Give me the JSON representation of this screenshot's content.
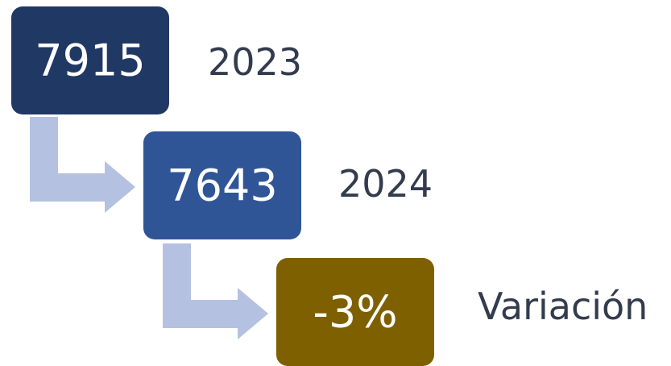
{
  "nodes": [
    {
      "value": "7915",
      "label": "2023"
    },
    {
      "value": "7643",
      "label": "2024"
    },
    {
      "value": "-3%",
      "label": "Variación"
    }
  ]
}
